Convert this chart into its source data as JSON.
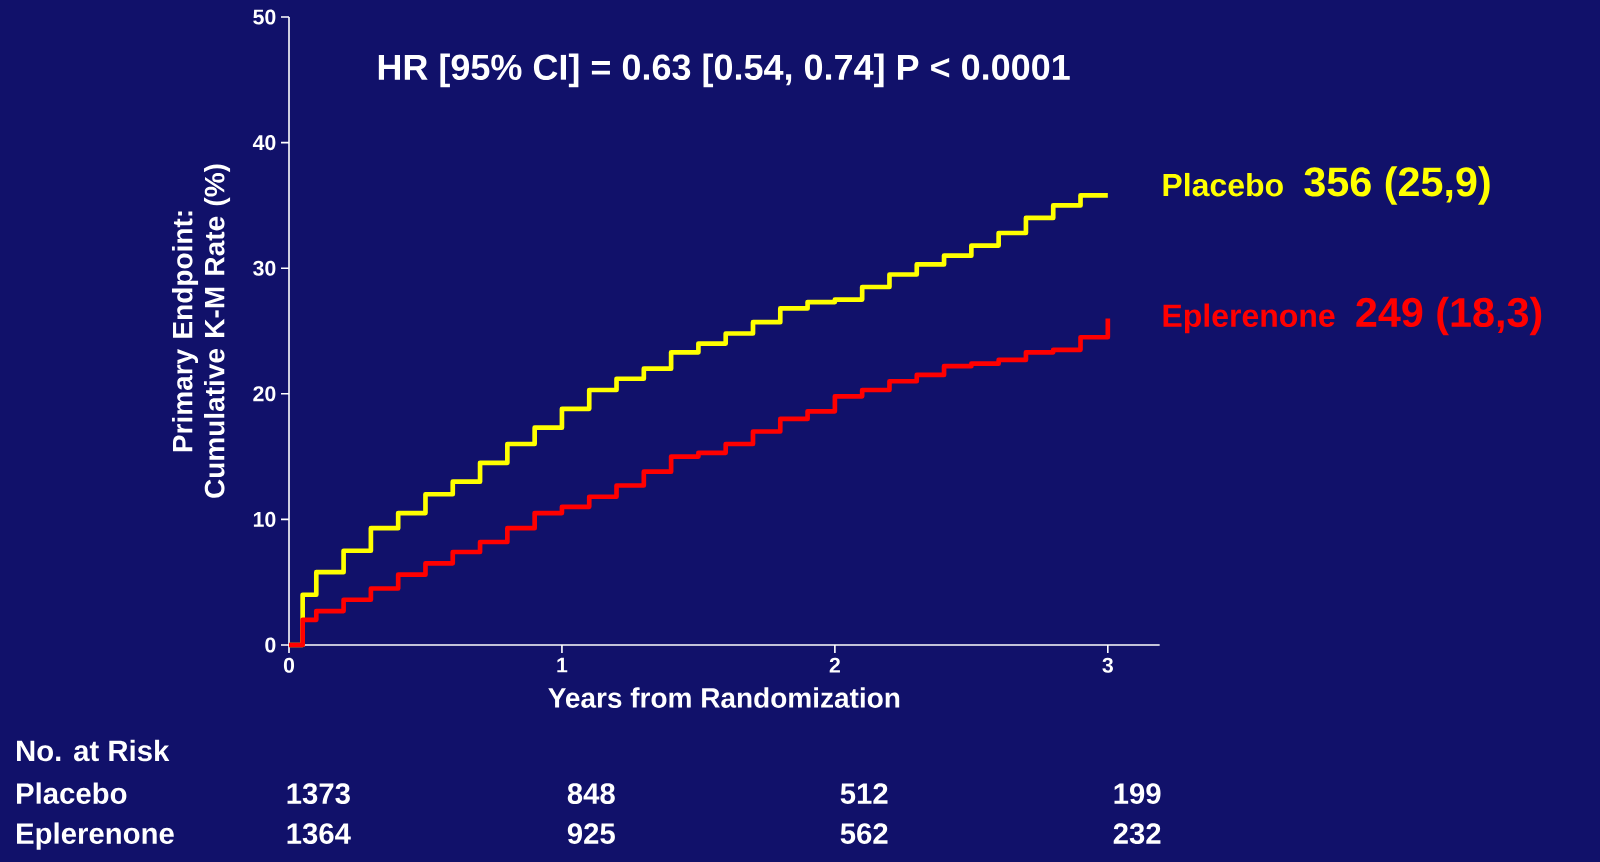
{
  "chart_data": {
    "type": "step",
    "xlabel": "Years  from Randomization",
    "ylabel": "Primary Endpoint: Cumulative K-M Rate (%)",
    "x": [
      0,
      0.05,
      0.1,
      0.2,
      0.3,
      0.4,
      0.5,
      0.6,
      0.7,
      0.8,
      0.9,
      1.0,
      1.1,
      1.2,
      1.3,
      1.4,
      1.5,
      1.6,
      1.7,
      1.8,
      1.9,
      2.0,
      2.1,
      2.2,
      2.3,
      2.4,
      2.5,
      2.6,
      2.7,
      2.8,
      2.9,
      3.0
    ],
    "series": [
      {
        "name": "Placebo",
        "color": "#ffff00",
        "values": [
          0,
          4,
          5.8,
          7.5,
          9.3,
          10.5,
          12,
          13,
          14.5,
          16,
          17.3,
          18.8,
          20.3,
          21.2,
          22,
          23.3,
          24,
          24.8,
          25.7,
          26.8,
          27.3,
          27.5,
          28.5,
          29.5,
          30.3,
          31,
          31.8,
          32.8,
          34,
          35,
          35.8,
          35.8
        ]
      },
      {
        "name": "Eplerenone",
        "color": "#ff0000",
        "values": [
          0,
          2,
          2.7,
          3.6,
          4.5,
          5.6,
          6.5,
          7.4,
          8.2,
          9.3,
          10.5,
          11,
          11.8,
          12.7,
          13.8,
          15,
          15.3,
          16,
          17,
          18,
          18.6,
          19.8,
          20.3,
          21,
          21.5,
          22.2,
          22.4,
          22.7,
          23.3,
          23.5,
          24.5,
          26
        ]
      }
    ],
    "xlim": [
      0,
      3.19
    ],
    "ylim": [
      0,
      50
    ],
    "xticks": [
      0,
      1,
      2,
      3
    ],
    "yticks": [
      0,
      10,
      20,
      30,
      40,
      50
    ],
    "grid": false,
    "legend": false,
    "marker": "none",
    "line_style": "solid",
    "annotations": [
      "HR [95% CI] = 0.63 [0.54, 0.74]  P < 0.0001",
      "356 (25,9)",
      "249 (18,3)",
      "No. at Risk",
      "Placebo",
      "1373",
      "848",
      "512",
      "199",
      "Eplerenone",
      "1364",
      "925",
      "562",
      "232"
    ]
  }
}
